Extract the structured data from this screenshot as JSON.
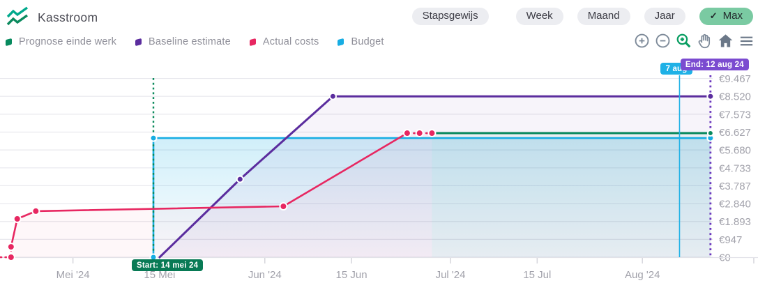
{
  "header": {
    "title": "Kasstroom",
    "logo": "waves-icon"
  },
  "controls": {
    "step_label": "Stapsgewijs",
    "range_buttons": [
      {
        "label": "Week",
        "active": false
      },
      {
        "label": "Maand",
        "active": false
      },
      {
        "label": "Jaar",
        "active": false
      },
      {
        "label": "Max",
        "active": true,
        "check": "✓"
      }
    ],
    "active_color": "#7acaa2"
  },
  "legend": [
    {
      "label": "Prognose einde werk",
      "color": "#078a5e"
    },
    {
      "label": "Baseline estimate",
      "color": "#5b2d9e"
    },
    {
      "label": "Actual costs",
      "color": "#e72761"
    },
    {
      "label": "Budget",
      "color": "#17ade3"
    }
  ],
  "toolbar": [
    {
      "name": "zoom-in-icon",
      "active": false
    },
    {
      "name": "zoom-out-icon",
      "active": false
    },
    {
      "name": "zoom-box-icon",
      "active": true
    },
    {
      "name": "pan-hand-icon",
      "active": false
    },
    {
      "name": "home-icon",
      "active": false
    },
    {
      "name": "menu-icon",
      "active": false
    }
  ],
  "chart_data": {
    "type": "line",
    "title": "Kasstroom",
    "currency": "€",
    "grid": true,
    "legend_position": "top-left",
    "x_range": [
      "2024-04-19",
      "2024-08-19"
    ],
    "ylim": [
      0,
      9467
    ],
    "y_axis": {
      "side": "right",
      "ticks": [
        {
          "label": "€0",
          "value": 0
        },
        {
          "label": "€947",
          "value": 947
        },
        {
          "label": "€1.893",
          "value": 1893
        },
        {
          "label": "€2.840",
          "value": 2840
        },
        {
          "label": "€3.787",
          "value": 3787
        },
        {
          "label": "€4.733",
          "value": 4733
        },
        {
          "label": "€5.680",
          "value": 5680
        },
        {
          "label": "€6.627",
          "value": 6627
        },
        {
          "label": "€7.573",
          "value": 7573
        },
        {
          "label": "€8.520",
          "value": 8520
        },
        {
          "label": "€9.467",
          "value": 9467
        }
      ]
    },
    "x_axis": {
      "ticks": [
        {
          "label": "Mei '24",
          "date": "2024-05-01"
        },
        {
          "label": "15 Mei",
          "date": "2024-05-15"
        },
        {
          "label": "Jun '24",
          "date": "2024-06-01"
        },
        {
          "label": "15 Jun",
          "date": "2024-06-15"
        },
        {
          "label": "Jul '24",
          "date": "2024-07-01"
        },
        {
          "label": "15 Jul",
          "date": "2024-07-15"
        },
        {
          "label": "Aug '24",
          "date": "2024-08-01"
        },
        {
          "label": "",
          "date": "2024-08-19"
        }
      ]
    },
    "series": [
      {
        "name": "Budget",
        "color": "#17ade3",
        "width": 2.6,
        "dot_radius": 4.5,
        "fill": "blue-gradient",
        "points": [
          {
            "date": "2024-05-14",
            "value": 0,
            "dot": true
          },
          {
            "date": "2024-05-14",
            "value": 6310,
            "dot": true
          },
          {
            "date": "2024-08-12",
            "value": 6310,
            "dot": true
          }
        ]
      },
      {
        "name": "Baseline estimate",
        "color": "#5b2d9e",
        "width": 3,
        "dot_radius": 4.5,
        "fill": "rgba(91,45,158,0.05)",
        "points": [
          {
            "date": "2024-05-15",
            "value": 0
          },
          {
            "date": "2024-05-28",
            "value": 4130,
            "dot": true
          },
          {
            "date": "2024-06-12",
            "value": 8520,
            "dot": true
          },
          {
            "date": "2024-08-12",
            "value": 8520,
            "dot": true
          }
        ]
      },
      {
        "name": "Prognose einde werk",
        "color": "#078a5e",
        "width": 3,
        "dot_radius": 4,
        "fill": "rgba(7,138,94,0.05)",
        "points": [
          {
            "date": "2024-06-28",
            "value": 6570
          },
          {
            "date": "2024-08-12",
            "value": 6570,
            "dot": true
          }
        ]
      },
      {
        "name": "Actual costs",
        "color": "#e72761",
        "width": 2.6,
        "dot_radius": 5,
        "fill": "rgba(231,39,97,0.04)",
        "points": [
          {
            "date": "2024-04-19",
            "value": 0,
            "dashed": true
          },
          {
            "date": "2024-04-21",
            "value": 0,
            "dot": true,
            "dashed": true
          },
          {
            "date": "2024-04-21",
            "value": 550,
            "dot": true
          },
          {
            "date": "2024-04-22",
            "value": 2030,
            "dot": true
          },
          {
            "date": "2024-04-25",
            "value": 2440,
            "dot": true
          },
          {
            "date": "2024-06-04",
            "value": 2695,
            "dot": true
          },
          {
            "date": "2024-06-24",
            "value": 6570,
            "dot": true,
            "dashed": true
          },
          {
            "date": "2024-06-26",
            "value": 6570,
            "dot": true,
            "dashed": true
          },
          {
            "date": "2024-06-28",
            "value": 6570,
            "dot": true
          }
        ]
      }
    ],
    "annotations": {
      "start": {
        "label": "Start: 14 mei 24",
        "date": "2024-05-14",
        "badge_color": "#087a55",
        "line_color": "#0a8a5c",
        "line_style": "dashed"
      },
      "cursor": {
        "label": "7 aug",
        "date": "2024-08-07",
        "badge_color": "#1fb1e6",
        "line_color": "#1fb1e6",
        "line_style": "solid"
      },
      "end": {
        "label": "End: 12 aug 24",
        "date": "2024-08-12",
        "badge_color": "#7b4bd0",
        "line_color": "#6b37bd",
        "line_style": "dashed"
      }
    }
  }
}
